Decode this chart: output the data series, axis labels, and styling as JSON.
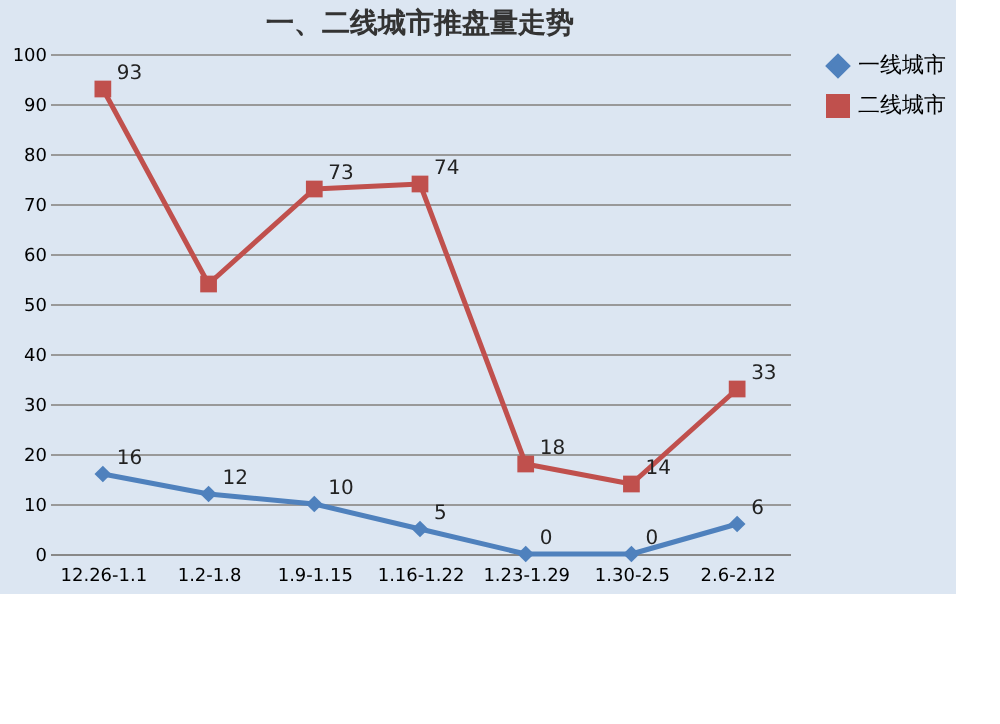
{
  "chart_data": {
    "type": "line",
    "title": "一、二线城市推盘量走势",
    "categories": [
      "12.26-1.1",
      "1.2-1.8",
      "1.9-1.15",
      "1.16-1.22",
      "1.23-1.29",
      "1.30-2.5",
      "2.6-2.12"
    ],
    "series": [
      {
        "name": "一线城市",
        "color": "#4f81bd",
        "marker": "diamond",
        "values": [
          16,
          12,
          10,
          5,
          0,
          0,
          6
        ],
        "value_labels": [
          "16",
          "12",
          "10",
          "5",
          "0",
          "0",
          "6"
        ]
      },
      {
        "name": "二线城市",
        "color": "#c0504d",
        "marker": "square",
        "values": [
          93,
          54,
          73,
          74,
          18,
          14,
          33
        ],
        "value_labels": [
          "93",
          null,
          "73",
          "74",
          "18",
          "14",
          "33"
        ]
      }
    ],
    "ylim": [
      0,
      100
    ],
    "yticks": [
      0,
      10,
      20,
      30,
      40,
      50,
      60,
      70,
      80,
      90,
      100
    ],
    "grid": "y",
    "legend": "right"
  }
}
